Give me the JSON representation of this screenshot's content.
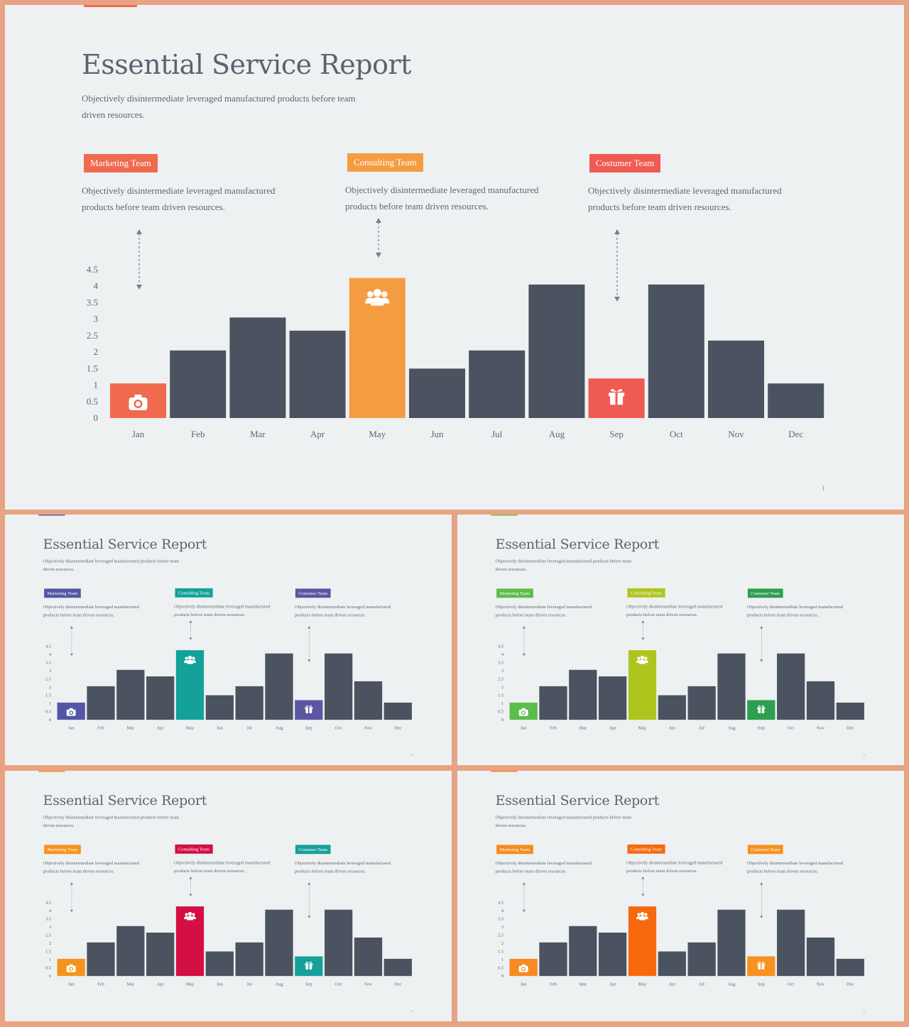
{
  "slide": {
    "title": "Essential Service Report",
    "subtitle": "Objectively disintermediate leveraged manufactured products before team driven resources.",
    "teams": [
      {
        "label": "Marketing Team",
        "description": "Objectively disintermediate leveraged manufactured products before team  driven resources."
      },
      {
        "label": "Consulting Team",
        "description": "Objectively disintermediate leveraged manufactured products before team  driven resources."
      },
      {
        "label": "Costumer Team",
        "description": "Objectively disintermediate leveraged manufactured products before team  driven resources."
      }
    ]
  },
  "themes": [
    {
      "page": "1",
      "accent": "#ef6a4f",
      "marketing": "#ef6a4f",
      "consulting": "#f59c42",
      "costumer": "#ef5a52"
    },
    {
      "page": "2",
      "accent": "#5f5ea2",
      "marketing": "#5456a4",
      "consulting": "#14a19a",
      "costumer": "#5c56a2"
    },
    {
      "page": "3",
      "accent": "#7ac142",
      "marketing": "#5bbd4a",
      "consulting": "#aec51e",
      "costumer": "#2e9e4f"
    },
    {
      "page": "4",
      "accent": "#f3941f",
      "marketing": "#f5941d",
      "consulting": "#d40f44",
      "costumer": "#17a09b"
    },
    {
      "page": "5",
      "accent": "#f58220",
      "marketing": "#f78a20",
      "consulting": "#f6690f",
      "costumer": "#f7921e"
    }
  ],
  "icons": {
    "jan": "camera-icon",
    "may": "group-icon",
    "sep": "gift-icon"
  },
  "chart_data": {
    "type": "bar",
    "categories": [
      "Jan",
      "Feb",
      "Mar",
      "Apr",
      "May",
      "Jun",
      "Jul",
      "Aug",
      "Sep",
      "Oct",
      "Nov",
      "Dec"
    ],
    "values": [
      1.05,
      2.05,
      3.05,
      2.65,
      4.25,
      1.5,
      2.05,
      4.05,
      1.2,
      4.05,
      2.35,
      1.05
    ],
    "highlight": {
      "Jan": "marketing",
      "May": "consulting",
      "Sep": "costumer"
    },
    "yticks": [
      "0",
      "0.5",
      "1",
      "1.5",
      "2",
      "2.5",
      "3",
      "3.5",
      "4",
      "4.5"
    ],
    "ylim": [
      0,
      4.5
    ],
    "bar_color": "#4a535f",
    "grid": false
  }
}
